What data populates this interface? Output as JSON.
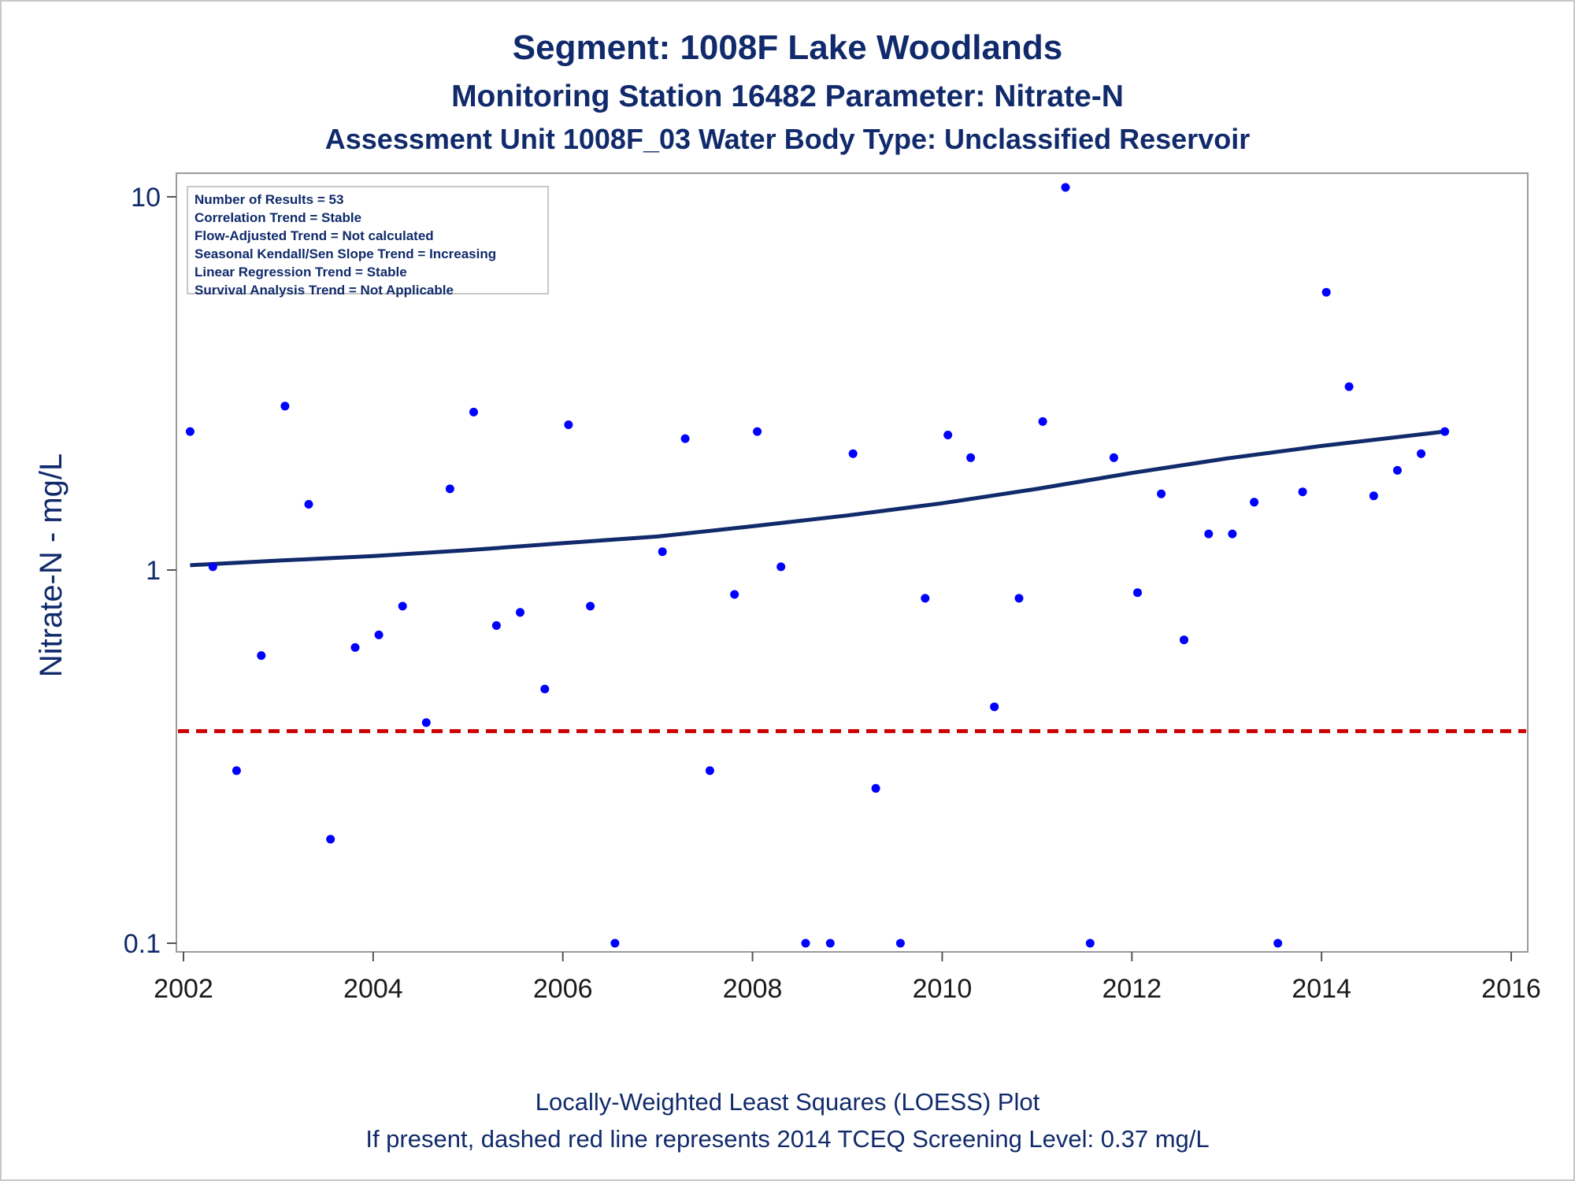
{
  "title": "Segment: 1008F  Lake Woodlands",
  "subtitle1": "Monitoring Station 16482 Parameter: Nitrate-N",
  "subtitle2": "Assessment Unit 1008F_03   Water Body Type: Unclassified Reservoir",
  "footer1": "Locally-Weighted Least Squares (LOESS) Plot",
  "footer2": "If present, dashed red line represents 2014 TCEQ Screening Level: 0.37 mg/L",
  "stats": [
    "Number of Results = 53",
    "Correlation Trend = Stable",
    "Flow-Adjusted Trend = Not calculated",
    "Seasonal Kendall/Sen Slope Trend = Increasing",
    "Linear Regression Trend = Stable",
    "Survival Analysis Trend = Not Applicable"
  ],
  "colors": {
    "points": "#0000ff",
    "loess": "#102a6b",
    "screening": "#cc0000",
    "text": "#102a6b"
  },
  "chart_data": {
    "type": "scatter",
    "title": "Segment: 1008F  Lake Woodlands",
    "xlabel": "",
    "ylabel": "Nitrate-N - mg/L",
    "yscale": "log",
    "xlim": [
      2002.0,
      2016.0
    ],
    "ylim": [
      0.1,
      10
    ],
    "x_ticks": [
      2002,
      2004,
      2006,
      2008,
      2010,
      2012,
      2014,
      2016
    ],
    "x_tick_labels": [
      "2002",
      "2004",
      "2006",
      "2008",
      "2010",
      "2012",
      "2014",
      "2016"
    ],
    "y_ticks": [
      0.1,
      1,
      10
    ],
    "y_tick_labels": [
      "0.1",
      "1",
      "10"
    ],
    "grid": false,
    "legend": "inset top-left (statistics box)",
    "screening_level": 0.37,
    "series": [
      {
        "type": "scatter",
        "x": [
          2002.07,
          2002.31,
          2002.56,
          2002.82,
          2003.07,
          2003.32,
          2003.55,
          2003.81,
          2004.06,
          2004.31,
          2004.56,
          2004.81,
          2005.06,
          2005.3,
          2005.55,
          2005.81,
          2006.06,
          2006.55,
          2006.29,
          2007.05,
          2007.29,
          2007.55,
          2007.81,
          2008.05,
          2008.3,
          2008.56,
          2008.82,
          2009.06,
          2009.3,
          2009.56,
          2009.82,
          2010.06,
          2010.3,
          2010.55,
          2010.81,
          2011.06,
          2011.3,
          2011.56,
          2011.81,
          2012.06,
          2012.31,
          2012.55,
          2012.81,
          2013.06,
          2013.29,
          2013.54,
          2013.8,
          2014.05,
          2014.29,
          2014.55,
          2014.8,
          2015.05,
          2015.3
        ],
        "y": [
          2.35,
          1.02,
          0.29,
          0.59,
          2.75,
          1.5,
          0.19,
          0.62,
          0.67,
          0.8,
          0.39,
          1.65,
          2.65,
          0.71,
          0.77,
          0.48,
          2.45,
          0.1,
          0.8,
          1.12,
          2.25,
          0.29,
          0.86,
          2.35,
          1.02,
          0.1,
          0.1,
          2.05,
          0.26,
          0.1,
          0.84,
          2.3,
          2.0,
          0.43,
          0.84,
          2.5,
          10.6,
          0.1,
          2.0,
          0.87,
          1.6,
          0.65,
          1.25,
          1.25,
          1.52,
          0.1,
          1.62,
          5.55,
          3.1,
          1.58,
          1.85,
          2.05,
          2.35
        ]
      },
      {
        "type": "line",
        "x": [
          2002.07,
          2003.0,
          2004.0,
          2005.0,
          2006.0,
          2007.0,
          2008.0,
          2009.0,
          2010.0,
          2011.0,
          2012.0,
          2013.0,
          2014.0,
          2015.3
        ],
        "y": [
          1.03,
          1.06,
          1.09,
          1.13,
          1.18,
          1.23,
          1.31,
          1.4,
          1.51,
          1.65,
          1.82,
          1.99,
          2.15,
          2.35
        ]
      }
    ]
  }
}
